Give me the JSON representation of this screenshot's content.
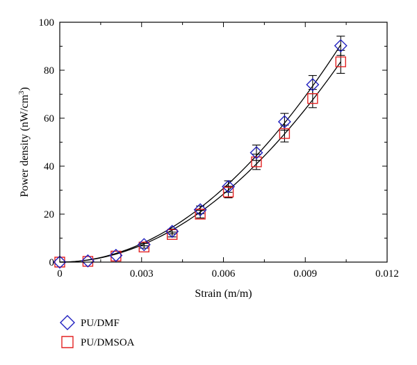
{
  "chart_data": {
    "type": "scatter",
    "xlabel": "Strain (m/m)",
    "ylabel": {
      "prefix": "Power density (nW/cm",
      "superscript": "3",
      "suffix": ")"
    },
    "xlim": [
      0,
      0.012
    ],
    "ylim": [
      0,
      100
    ],
    "x_ticks": [
      0,
      0.003,
      0.006,
      0.009,
      0.012
    ],
    "x_tick_labels": [
      "0",
      "0.003",
      "0.006",
      "0.009",
      "0.012"
    ],
    "y_ticks": [
      0,
      20,
      40,
      60,
      80,
      100
    ],
    "y_tick_labels": [
      "0",
      "20",
      "40",
      "60",
      "80",
      "100"
    ],
    "grid": false,
    "legend_position": "bottom-left",
    "x": [
      0,
      0.00103,
      0.00206,
      0.00309,
      0.00412,
      0.00515,
      0.00618,
      0.00721,
      0.00824,
      0.00927,
      0.0103
    ],
    "series": [
      {
        "name": "PU/DMF",
        "marker": "diamond",
        "color": "#1f1fbf",
        "values": [
          0,
          0.5,
          2.8,
          7.3,
          12.8,
          21.8,
          31.5,
          45.6,
          58.5,
          74.0,
          90.2
        ],
        "errors": [
          0,
          0,
          0,
          0.5,
          1.0,
          1.6,
          2.4,
          3.2,
          3.5,
          3.8,
          4.0
        ]
      },
      {
        "name": "PU/DMSOA",
        "marker": "square",
        "color": "#e32222",
        "values": [
          0,
          0.3,
          2.5,
          6.3,
          11.5,
          20.0,
          29.2,
          41.8,
          53.6,
          68.2,
          83.5
        ],
        "errors": [
          0,
          0,
          0,
          0.5,
          1.0,
          1.6,
          2.4,
          3.2,
          3.5,
          3.8,
          4.8
        ]
      }
    ]
  }
}
